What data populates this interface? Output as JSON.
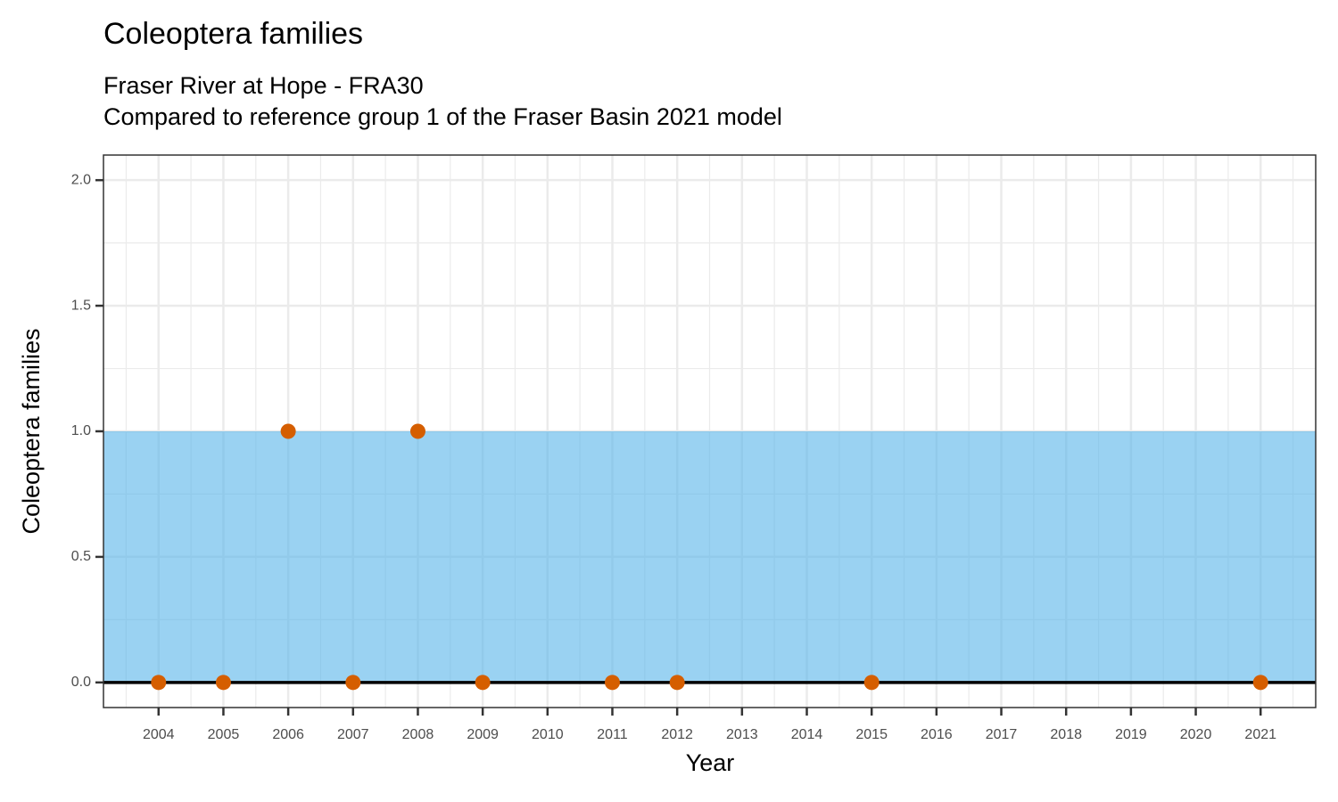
{
  "chart_data": {
    "type": "scatter",
    "title": "Coleoptera families",
    "subtitle": [
      "Fraser River at Hope - FRA30",
      "Compared to reference group 1 of the Fraser Basin 2021 model"
    ],
    "x_label": "Year",
    "y_label": "Coleoptera families",
    "x": [
      2004,
      2005,
      2006,
      2007,
      2008,
      2009,
      2011,
      2012,
      2015,
      2021
    ],
    "values": [
      0,
      0,
      1,
      0,
      1,
      0,
      0,
      0,
      0,
      0
    ],
    "color": "#d55e00",
    "band": [
      0,
      1
    ],
    "band_color": "#56b4e9",
    "hline": 0,
    "xlim": [
      2003.15,
      2021.85
    ],
    "ylim": [
      -0.1,
      2.1
    ],
    "xticks": [
      2004,
      2005,
      2006,
      2007,
      2008,
      2009,
      2010,
      2011,
      2012,
      2013,
      2014,
      2015,
      2016,
      2017,
      2018,
      2019,
      2020,
      2021
    ],
    "yticks": [
      {
        "value": 0,
        "label": "0.0"
      },
      {
        "value": 0.5,
        "label": "0.5"
      },
      {
        "value": 1,
        "label": "1.0"
      },
      {
        "value": 1.5,
        "label": "1.5"
      },
      {
        "value": 2,
        "label": "2.0"
      }
    ],
    "grid": true
  }
}
